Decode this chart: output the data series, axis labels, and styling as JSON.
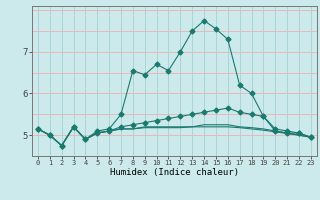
{
  "xlabel": "Humidex (Indice chaleur)",
  "bg_color": "#cce9ec",
  "grid_color_v": "#aad4d8",
  "grid_color_h": "#e8b8b8",
  "line_color": "#1a7a6e",
  "x_values": [
    0,
    1,
    2,
    3,
    4,
    5,
    6,
    7,
    8,
    9,
    10,
    11,
    12,
    13,
    14,
    15,
    16,
    17,
    18,
    19,
    20,
    21,
    22,
    23
  ],
  "series": [
    [
      5.15,
      5.0,
      4.75,
      5.2,
      4.9,
      5.1,
      5.15,
      5.5,
      6.55,
      6.45,
      6.7,
      6.55,
      7.0,
      7.5,
      7.75,
      7.55,
      7.3,
      6.2,
      6.0,
      5.45,
      5.1,
      5.05,
      5.05,
      4.95
    ],
    [
      5.15,
      5.0,
      4.75,
      5.2,
      4.9,
      5.05,
      5.1,
      5.2,
      5.25,
      5.3,
      5.35,
      5.4,
      5.45,
      5.5,
      5.55,
      5.6,
      5.65,
      5.55,
      5.5,
      5.45,
      5.15,
      5.1,
      5.05,
      4.95
    ],
    [
      5.15,
      5.0,
      4.75,
      5.2,
      4.9,
      5.05,
      5.1,
      5.15,
      5.15,
      5.2,
      5.2,
      5.2,
      5.2,
      5.2,
      5.25,
      5.25,
      5.25,
      5.2,
      5.18,
      5.15,
      5.1,
      5.05,
      5.0,
      4.95
    ],
    [
      5.15,
      5.0,
      4.75,
      5.2,
      4.9,
      5.05,
      5.1,
      5.15,
      5.15,
      5.18,
      5.18,
      5.18,
      5.18,
      5.2,
      5.2,
      5.2,
      5.2,
      5.18,
      5.15,
      5.12,
      5.08,
      5.04,
      5.0,
      4.95
    ]
  ],
  "ylim": [
    4.5,
    8.1
  ],
  "yticks": [
    5,
    6,
    7
  ],
  "xticks": [
    0,
    1,
    2,
    3,
    4,
    5,
    6,
    7,
    8,
    9,
    10,
    11,
    12,
    13,
    14,
    15,
    16,
    17,
    18,
    19,
    20,
    21,
    22,
    23
  ],
  "show_markers": [
    true,
    true,
    false,
    false
  ],
  "marker_style": "D",
  "marker_size": 2.5
}
